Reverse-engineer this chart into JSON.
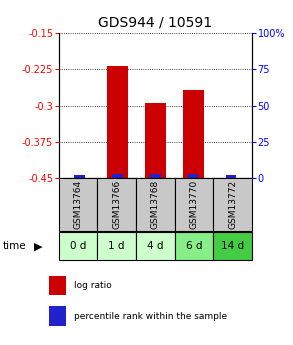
{
  "title": "GDS944 / 10591",
  "samples": [
    "GSM13764",
    "GSM13766",
    "GSM13768",
    "GSM13770",
    "GSM13772"
  ],
  "time_labels": [
    "0 d",
    "1 d",
    "4 d",
    "6 d",
    "14 d"
  ],
  "log_ratios": [
    -0.449,
    -0.218,
    -0.295,
    -0.268,
    -0.449
  ],
  "percentile_ranks": [
    2,
    3,
    3,
    3,
    2
  ],
  "ylim_left": [
    -0.45,
    -0.15
  ],
  "ylim_right": [
    0,
    100
  ],
  "yticks_left": [
    -0.45,
    -0.375,
    -0.3,
    -0.225,
    -0.15
  ],
  "ytick_labels_left": [
    "-0.45",
    "-0.375",
    "-0.3",
    "-0.225",
    "-0.15"
  ],
  "yticks_right": [
    0,
    25,
    50,
    75,
    100
  ],
  "ytick_labels_right": [
    "0",
    "25",
    "50",
    "75",
    "100%"
  ],
  "bar_width": 0.55,
  "red_color": "#cc0000",
  "blue_color": "#2222cc",
  "sample_bg_color": "#c8c8c8",
  "time_bg_colors": [
    "#ccffcc",
    "#ccffcc",
    "#ccffcc",
    "#88ee88",
    "#44cc44"
  ],
  "legend_red_label": "log ratio",
  "legend_blue_label": "percentile rank within the sample",
  "title_fontsize": 10,
  "tick_fontsize": 7,
  "sample_fontsize": 6.5,
  "time_fontsize": 7.5,
  "baseline": -0.45
}
